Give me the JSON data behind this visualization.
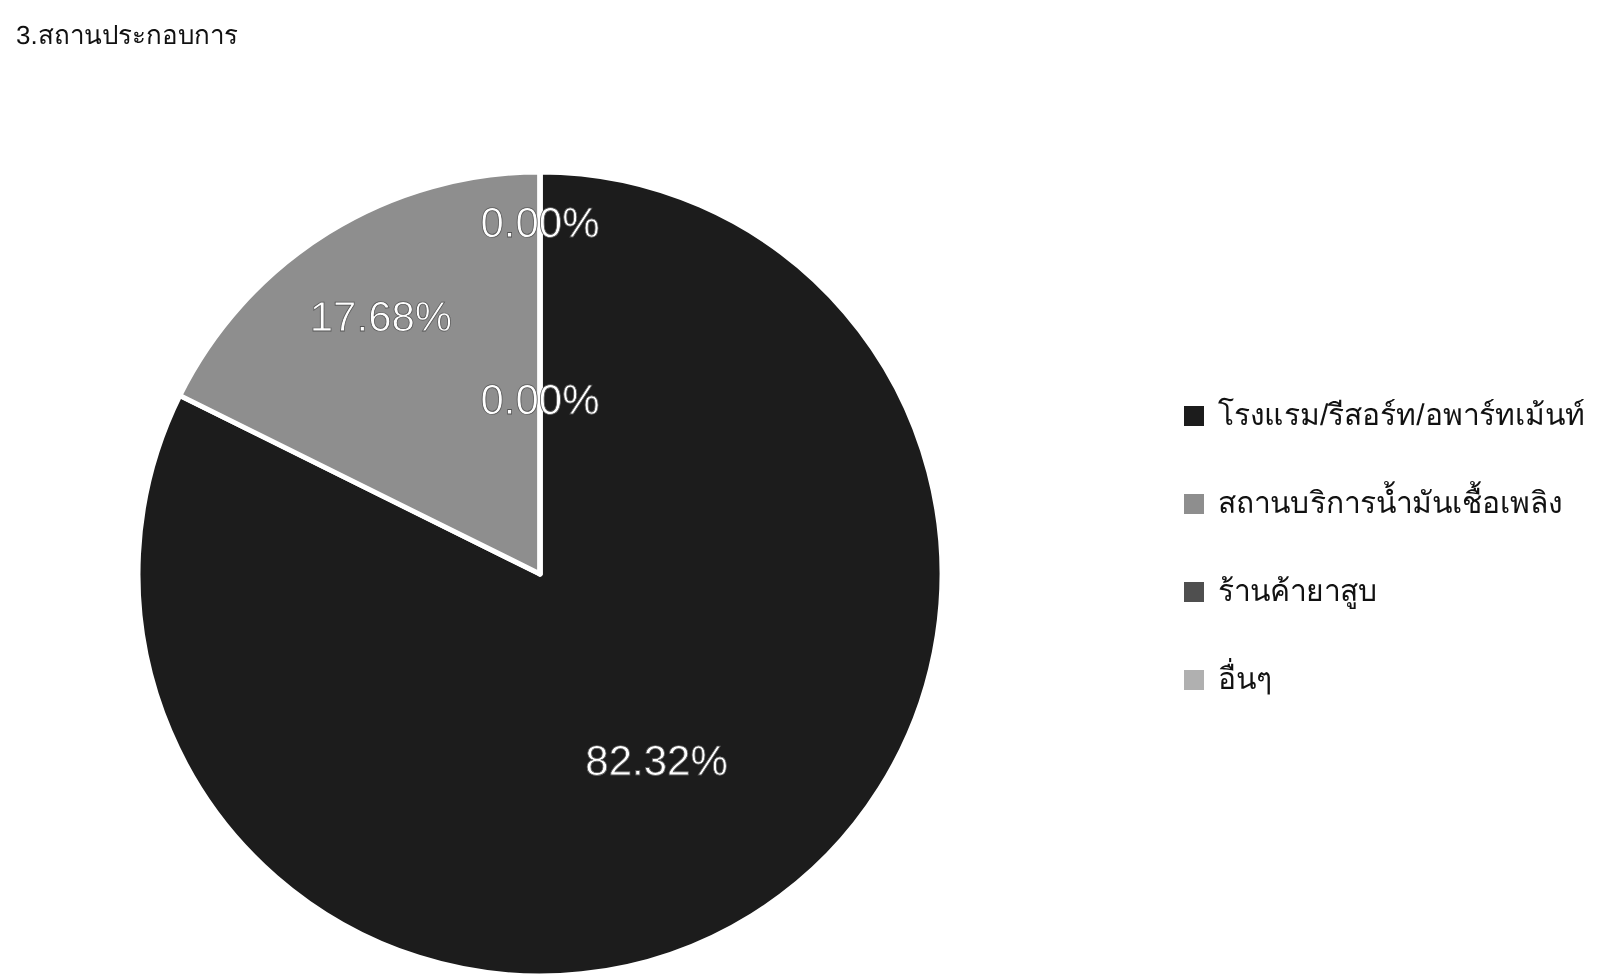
{
  "chart_data": {
    "type": "pie",
    "title": "3.สถานประกอบการ",
    "categories": [
      "โรงแรม/รีสอร์ท/อพาร์ทเม้นท์",
      "สถานบริการน้ำมันเชื้อเพลิง",
      "ร้านค้ายาสูบ",
      "อื่นๆ"
    ],
    "values": [
      82.32,
      17.68,
      0,
      0
    ],
    "colors": [
      "#1c1c1c",
      "#8e8e8e",
      "#4f4f4f",
      "#b0b0b0"
    ],
    "value_labels": [
      "82.32%",
      "17.68%",
      "0.00%",
      "0.00%"
    ],
    "legend": "right"
  }
}
